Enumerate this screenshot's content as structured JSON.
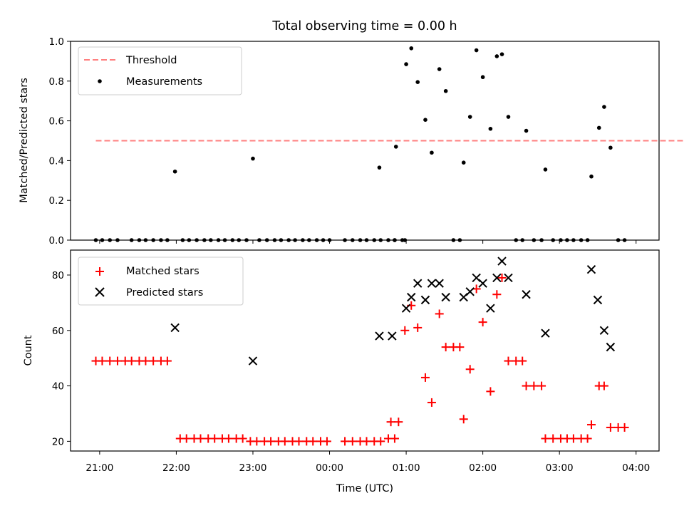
{
  "chart_data": [
    {
      "type": "scatter",
      "title": "Total observing time = 0.00 h",
      "xlabel": "",
      "ylabel": "Matched/Predicted stars",
      "ylim": [
        0.0,
        1.0
      ],
      "xlim_hours": [
        20.62,
        28.3
      ],
      "y_ticks": [
        "0.0",
        "0.2",
        "0.4",
        "0.6",
        "0.8",
        "1.0"
      ],
      "grid": false,
      "legend_position": "upper-left",
      "legend": [
        "Threshold",
        "Measurements"
      ],
      "threshold": {
        "name": "Threshold",
        "y": 0.5,
        "x_range": [
          "20:57",
          "28:48"
        ],
        "color": "#ff7f7f",
        "style": "dashed"
      },
      "series": [
        {
          "name": "Measurements",
          "color": "#000000",
          "points": [
            [
              "20:57",
              0
            ],
            [
              "21:02",
              0
            ],
            [
              "21:08",
              0
            ],
            [
              "21:14",
              0
            ],
            [
              "21:25",
              0
            ],
            [
              "21:31",
              0
            ],
            [
              "21:36",
              0
            ],
            [
              "21:42",
              0
            ],
            [
              "21:48",
              0
            ],
            [
              "21:53",
              0
            ],
            [
              "21:59",
              0.345
            ],
            [
              "22:05",
              0
            ],
            [
              "22:10",
              0
            ],
            [
              "22:16",
              0
            ],
            [
              "22:22",
              0
            ],
            [
              "22:27",
              0
            ],
            [
              "22:33",
              0
            ],
            [
              "22:38",
              0
            ],
            [
              "22:44",
              0
            ],
            [
              "22:49",
              0
            ],
            [
              "22:55",
              0
            ],
            [
              "23:00",
              0.41
            ],
            [
              "23:05",
              0
            ],
            [
              "23:11",
              0
            ],
            [
              "23:17",
              0
            ],
            [
              "23:22",
              0
            ],
            [
              "23:28",
              0
            ],
            [
              "23:33",
              0
            ],
            [
              "23:39",
              0
            ],
            [
              "23:44",
              0
            ],
            [
              "23:50",
              0
            ],
            [
              "23:55",
              0
            ],
            [
              "24:00",
              0
            ],
            [
              "24:12",
              0
            ],
            [
              "24:18",
              0
            ],
            [
              "24:24",
              0
            ],
            [
              "24:29",
              0
            ],
            [
              "24:35",
              0
            ],
            [
              "24:40",
              0
            ],
            [
              "24:46",
              0
            ],
            [
              "24:51",
              0
            ],
            [
              "24:57",
              0
            ],
            [
              "24:39",
              0.365
            ],
            [
              "24:51",
              0.0
            ],
            [
              "24:52",
              0.47
            ],
            [
              "24:59",
              0.0
            ],
            [
              "25:00",
              0.885
            ],
            [
              "25:04",
              0.965
            ],
            [
              "25:09",
              0.795
            ],
            [
              "25:15",
              0.605
            ],
            [
              "25:20",
              0.44
            ],
            [
              "25:26",
              0.86
            ],
            [
              "25:31",
              0.75
            ],
            [
              "25:37",
              0
            ],
            [
              "25:42",
              0
            ],
            [
              "25:45",
              0.39
            ],
            [
              "25:50",
              0.62
            ],
            [
              "25:55",
              0.955
            ],
            [
              "26:00",
              0.82
            ],
            [
              "26:06",
              0.56
            ],
            [
              "26:11",
              0.925
            ],
            [
              "26:15",
              0.935
            ],
            [
              "26:20",
              0.62
            ],
            [
              "26:26",
              0
            ],
            [
              "26:31",
              0
            ],
            [
              "26:34",
              0.55
            ],
            [
              "26:40",
              0
            ],
            [
              "26:46",
              0
            ],
            [
              "26:49",
              0.355
            ],
            [
              "26:55",
              0
            ],
            [
              "27:01",
              0
            ],
            [
              "27:06",
              0
            ],
            [
              "27:11",
              0
            ],
            [
              "27:17",
              0
            ],
            [
              "27:22",
              0
            ],
            [
              "27:25",
              0.32
            ],
            [
              "27:31",
              0.565
            ],
            [
              "27:35",
              0.67
            ],
            [
              "27:40",
              0.465
            ],
            [
              "27:46",
              0
            ],
            [
              "27:51",
              0
            ]
          ]
        }
      ]
    },
    {
      "type": "scatter",
      "title": "",
      "xlabel": "Time (UTC)",
      "ylabel": "Count",
      "ylim": [
        16.5,
        89
      ],
      "xlim_hours": [
        20.62,
        28.3
      ],
      "y_ticks": [
        "20",
        "40",
        "60",
        "80"
      ],
      "x_ticks": [
        "21:00",
        "22:00",
        "23:00",
        "00:00",
        "01:00",
        "02:00",
        "03:00",
        "04:00"
      ],
      "grid": false,
      "legend_position": "upper-left",
      "legend": [
        "Matched stars",
        "Predicted stars"
      ],
      "series": [
        {
          "name": "Matched stars",
          "marker": "+",
          "color": "#ff0000",
          "points": [
            [
              "20:57",
              49
            ],
            [
              "21:02",
              49
            ],
            [
              "21:08",
              49
            ],
            [
              "21:14",
              49
            ],
            [
              "21:20",
              49
            ],
            [
              "21:25",
              49
            ],
            [
              "21:31",
              49
            ],
            [
              "21:36",
              49
            ],
            [
              "21:42",
              49
            ],
            [
              "21:48",
              49
            ],
            [
              "21:53",
              49
            ],
            [
              "22:03",
              21
            ],
            [
              "22:08",
              21
            ],
            [
              "22:14",
              21
            ],
            [
              "22:19",
              21
            ],
            [
              "22:25",
              21
            ],
            [
              "22:30",
              21
            ],
            [
              "22:36",
              21
            ],
            [
              "22:41",
              21
            ],
            [
              "22:47",
              21
            ],
            [
              "22:52",
              21
            ],
            [
              "22:58",
              20
            ],
            [
              "23:03",
              20
            ],
            [
              "23:09",
              20
            ],
            [
              "23:14",
              20
            ],
            [
              "23:20",
              20
            ],
            [
              "23:25",
              20
            ],
            [
              "23:31",
              20
            ],
            [
              "23:36",
              20
            ],
            [
              "23:42",
              20
            ],
            [
              "23:47",
              20
            ],
            [
              "23:53",
              20
            ],
            [
              "23:58",
              20
            ],
            [
              "24:12",
              20
            ],
            [
              "24:18",
              20
            ],
            [
              "24:24",
              20
            ],
            [
              "24:29",
              20
            ],
            [
              "24:35",
              20
            ],
            [
              "24:40",
              20
            ],
            [
              "24:46",
              21
            ],
            [
              "24:51",
              21
            ],
            [
              "24:48",
              27
            ],
            [
              "24:54",
              27
            ],
            [
              "24:59",
              60
            ],
            [
              "25:04",
              69
            ],
            [
              "25:09",
              61
            ],
            [
              "25:15",
              43
            ],
            [
              "25:20",
              34
            ],
            [
              "25:26",
              66
            ],
            [
              "25:31",
              54
            ],
            [
              "25:37",
              54
            ],
            [
              "25:42",
              54
            ],
            [
              "25:45",
              28
            ],
            [
              "25:50",
              46
            ],
            [
              "25:55",
              75
            ],
            [
              "26:00",
              63
            ],
            [
              "26:06",
              38
            ],
            [
              "26:11",
              73
            ],
            [
              "26:15",
              79
            ],
            [
              "26:20",
              49
            ],
            [
              "26:26",
              49
            ],
            [
              "26:31",
              49
            ],
            [
              "26:34",
              40
            ],
            [
              "26:40",
              40
            ],
            [
              "26:46",
              40
            ],
            [
              "26:49",
              21
            ],
            [
              "26:55",
              21
            ],
            [
              "27:01",
              21
            ],
            [
              "27:06",
              21
            ],
            [
              "27:11",
              21
            ],
            [
              "27:17",
              21
            ],
            [
              "27:22",
              21
            ],
            [
              "27:25",
              26
            ],
            [
              "27:31",
              40
            ],
            [
              "27:35",
              40
            ],
            [
              "27:40",
              25
            ],
            [
              "27:46",
              25
            ],
            [
              "27:51",
              25
            ]
          ]
        },
        {
          "name": "Predicted stars",
          "marker": "x",
          "color": "#000000",
          "points": [
            [
              "21:59",
              61
            ],
            [
              "23:00",
              49
            ],
            [
              "24:39",
              58
            ],
            [
              "24:49",
              58
            ],
            [
              "25:00",
              68
            ],
            [
              "25:04",
              72
            ],
            [
              "25:09",
              77
            ],
            [
              "25:15",
              71
            ],
            [
              "25:20",
              77
            ],
            [
              "25:26",
              77
            ],
            [
              "25:31",
              72
            ],
            [
              "25:45",
              72
            ],
            [
              "25:50",
              74
            ],
            [
              "25:55",
              79
            ],
            [
              "26:00",
              77
            ],
            [
              "26:06",
              68
            ],
            [
              "26:11",
              79
            ],
            [
              "26:15",
              85
            ],
            [
              "26:20",
              79
            ],
            [
              "26:34",
              73
            ],
            [
              "26:49",
              59
            ],
            [
              "27:25",
              82
            ],
            [
              "27:30",
              71
            ],
            [
              "27:35",
              60
            ],
            [
              "27:40",
              54
            ]
          ]
        }
      ]
    }
  ]
}
